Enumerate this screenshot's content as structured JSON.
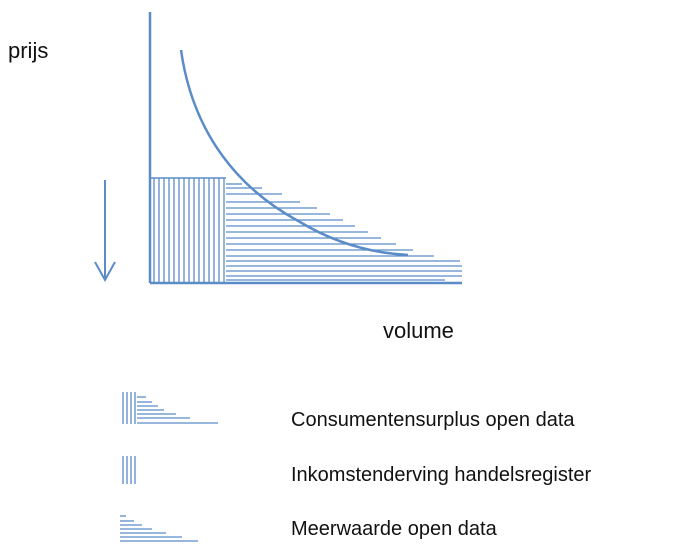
{
  "diagram": {
    "y_axis_label": "prijs",
    "x_axis_label": "volume",
    "legend": [
      {
        "text": "Consumentensurplus open data",
        "pattern": "vertical-and-horizontal-hatch"
      },
      {
        "text": "Inkomstenderving handelsregister",
        "pattern": "vertical-hatch"
      },
      {
        "text": "Meerwaarde open data",
        "pattern": "horizontal-hatch"
      }
    ],
    "colors": {
      "line": "#5b8cc8",
      "text": "#111111"
    }
  }
}
